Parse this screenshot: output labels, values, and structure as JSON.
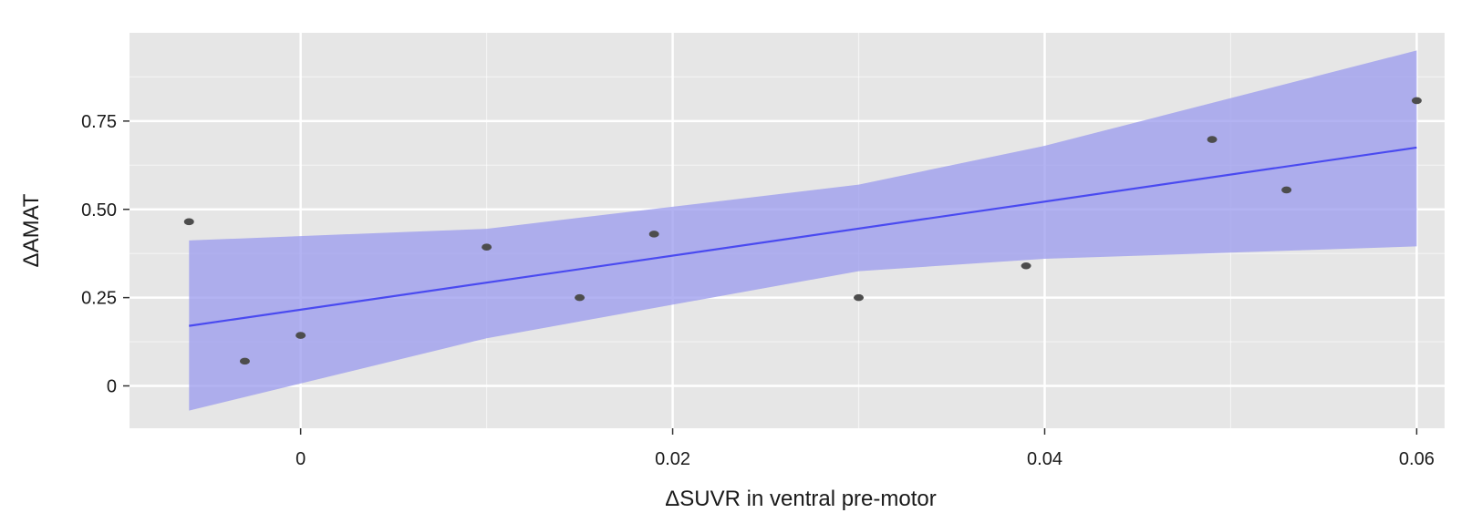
{
  "chart_data": {
    "type": "scatter",
    "xlabel": "ΔSUVR in ventral pre-motor",
    "ylabel": "ΔAMAT",
    "xlim": [
      -0.0092,
      0.0615
    ],
    "ylim": [
      -0.12,
      1.0
    ],
    "x_ticks": [
      {
        "value": 0,
        "label": "0"
      },
      {
        "value": 0.02,
        "label": "0.02"
      },
      {
        "value": 0.04,
        "label": "0.04"
      },
      {
        "value": 0.06,
        "label": "0.06"
      }
    ],
    "y_ticks": [
      {
        "value": 0,
        "label": "0"
      },
      {
        "value": 0.25,
        "label": "0.25"
      },
      {
        "value": 0.5,
        "label": "0.50"
      },
      {
        "value": 0.75,
        "label": "0.75"
      }
    ],
    "grid": true,
    "points": [
      {
        "x": -0.006,
        "y": 0.465
      },
      {
        "x": -0.003,
        "y": 0.07
      },
      {
        "x": 0.0,
        "y": 0.143
      },
      {
        "x": 0.01,
        "y": 0.393
      },
      {
        "x": 0.015,
        "y": 0.25
      },
      {
        "x": 0.019,
        "y": 0.43
      },
      {
        "x": 0.03,
        "y": 0.25
      },
      {
        "x": 0.039,
        "y": 0.34
      },
      {
        "x": 0.049,
        "y": 0.698
      },
      {
        "x": 0.053,
        "y": 0.555
      },
      {
        "x": 0.06,
        "y": 0.808
      }
    ],
    "fit_line": [
      {
        "x": -0.006,
        "y": 0.17
      },
      {
        "x": 0.06,
        "y": 0.675
      }
    ],
    "confidence_band": {
      "x": [
        -0.006,
        0.01,
        0.03,
        0.04,
        0.06
      ],
      "upper": [
        0.412,
        0.445,
        0.57,
        0.68,
        0.95
      ],
      "lower": [
        -0.07,
        0.135,
        0.325,
        0.36,
        0.395
      ]
    },
    "colors": {
      "panel": "#e6e6e6",
      "grid": "#ffffff",
      "point": "#4d4d4d",
      "fit_line": "#4a4af0",
      "band": "#9999ee"
    }
  }
}
